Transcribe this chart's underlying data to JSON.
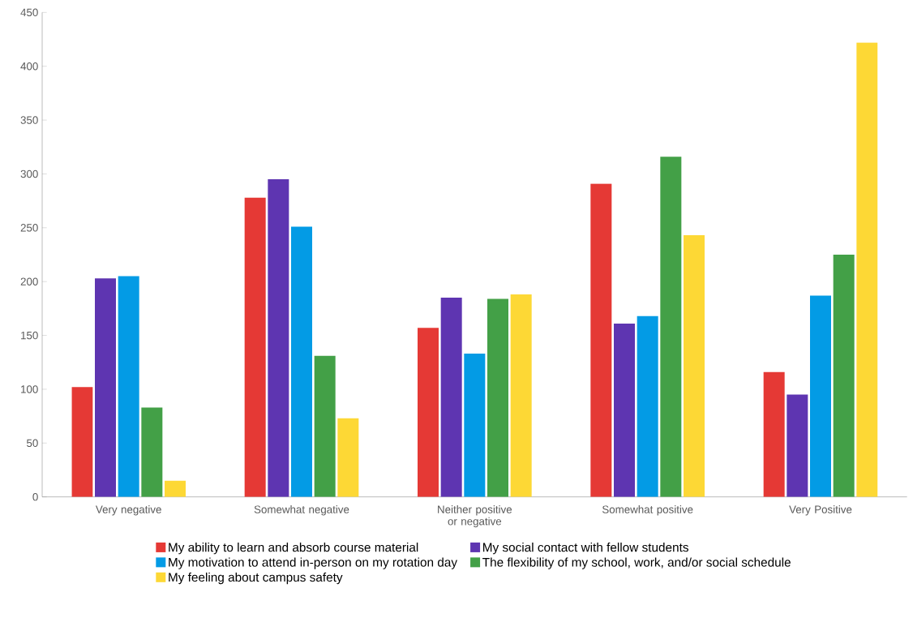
{
  "chart_data": {
    "type": "bar",
    "categories": [
      "Very negative",
      "Somewhat negative",
      "Neither positive or negative",
      "Somewhat positive",
      "Very Positive"
    ],
    "series": [
      {
        "name": "My ability to learn and absorb course material",
        "color": "#e53935",
        "values": [
          102,
          278,
          157,
          291,
          116
        ]
      },
      {
        "name": "My social contact with fellow students",
        "color": "#5e35b1",
        "values": [
          203,
          295,
          185,
          161,
          95
        ]
      },
      {
        "name": "My motivation to attend in-person on my rotation day",
        "color": "#039be5",
        "values": [
          205,
          251,
          133,
          168,
          187
        ]
      },
      {
        "name": "The flexibility of my school, work, and/or social schedule",
        "color": "#43a047",
        "values": [
          83,
          131,
          184,
          316,
          225
        ]
      },
      {
        "name": "My feeling about campus safety",
        "color": "#fdd835",
        "values": [
          15,
          73,
          188,
          243,
          422
        ]
      }
    ],
    "ylim": [
      0,
      450
    ],
    "yticks": [
      0,
      50,
      100,
      150,
      200,
      250,
      300,
      350,
      400,
      450
    ],
    "grid": false,
    "legend": "bottom"
  }
}
